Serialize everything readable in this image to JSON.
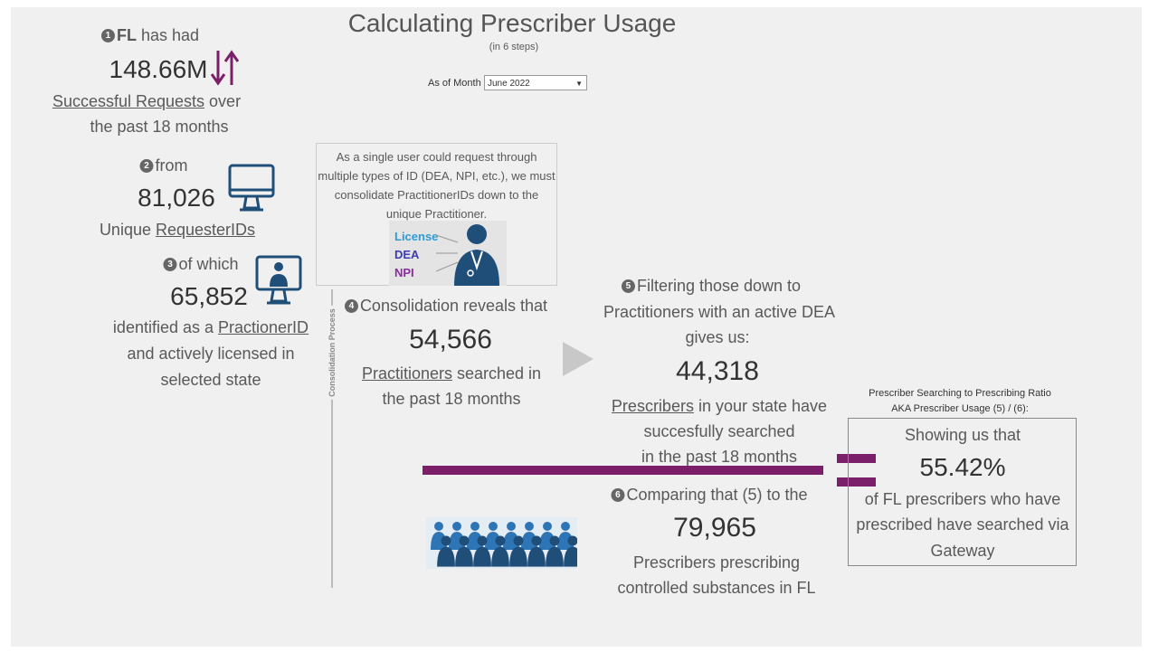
{
  "header": {
    "title": "Calculating Prescriber Usage",
    "subtitle": "(in 6 steps)"
  },
  "filter": {
    "label": "As of Month",
    "value": "June 2022"
  },
  "step1": {
    "number": "1",
    "bold": "FL",
    "lead": "has had",
    "value": "148.66M",
    "link": "Successful Requests",
    "after": "over",
    "line2": "the past 18 months"
  },
  "step2": {
    "number": "2",
    "lead": "from",
    "value": "81,026",
    "before": "Unique",
    "link": "RequesterIDs"
  },
  "step3": {
    "number": "3",
    "lead": "of which",
    "value": "65,852",
    "before": "identified as a",
    "link": "PractionerID",
    "line2": "and actively licensed in",
    "line3": "selected state"
  },
  "note": {
    "text": "As a single user could request through multiple types of ID (DEA, NPI, etc.), we must consolidate PractitionerIDs down to the unique Practitioner.",
    "labels": [
      "License",
      "DEA",
      "NPI"
    ]
  },
  "process_label": "Consolidation Process",
  "step4": {
    "number": "4",
    "lead": "Consolidation reveals that",
    "value": "54,566",
    "link": "Practitioners",
    "after": "searched in",
    "line2": "the past 18 months"
  },
  "step5": {
    "number": "5",
    "lead": "Filtering those down to",
    "line2": "Practitioners with an active DEA",
    "line3": "gives us:",
    "value": "44,318",
    "link": "Prescribers",
    "after": "in your state have",
    "line5": "succesfully searched",
    "line6": "in the past 18 months"
  },
  "step6": {
    "number": "6",
    "lead": "Comparing that (5) to the",
    "value": "79,965",
    "line2": "Prescribers prescribing",
    "line3": "controlled substances in FL"
  },
  "ratio": {
    "heading": "Prescriber Searching to Prescribing Ratio",
    "subheading": "AKA Prescriber Usage (5) / (6):",
    "lead": "Showing us that",
    "value": "55.42%",
    "line2": "of FL prescribers who have",
    "line3": "prescribed have searched via",
    "line4": "Gateway"
  }
}
